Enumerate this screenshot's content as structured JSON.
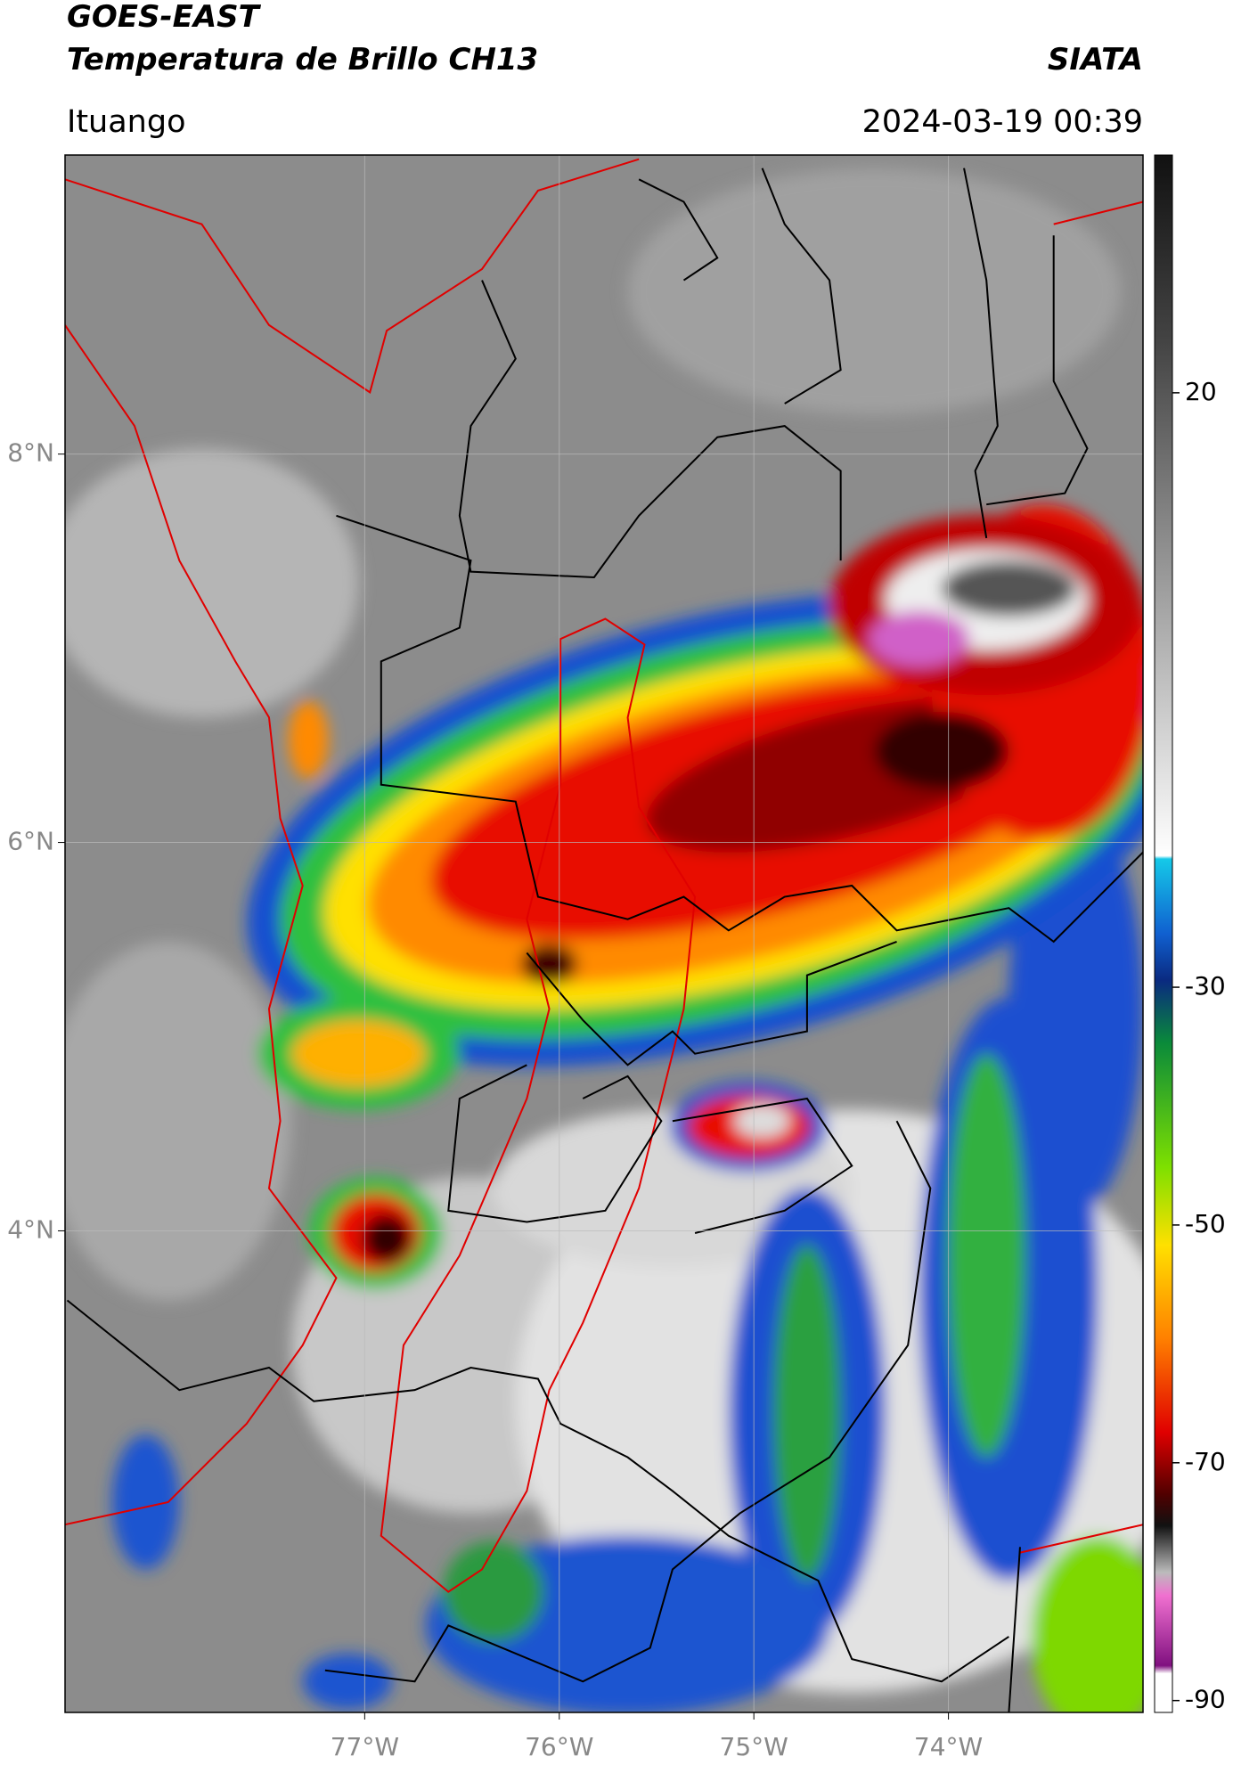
{
  "header": {
    "title": "GOES-EAST",
    "subtitle": "Temperatura de Brillo CH13",
    "brand": "SIATA",
    "location": "Ituango",
    "datetime": "2024-03-19 00:39"
  },
  "map": {
    "xlim": [
      -78.54,
      -73.0
    ],
    "ylim": [
      1.52,
      9.54
    ],
    "xticks": [
      {
        "value": -77,
        "label": "77°W"
      },
      {
        "value": -76,
        "label": "76°W"
      },
      {
        "value": -75,
        "label": "75°W"
      },
      {
        "value": -74,
        "label": "74°W"
      }
    ],
    "yticks": [
      {
        "value": 8,
        "label": "8°N"
      },
      {
        "value": 6,
        "label": "6°N"
      },
      {
        "value": 4,
        "label": "4°N"
      }
    ],
    "grid": true
  },
  "colorbar": {
    "lim": [
      -91,
      40
    ],
    "ticks": [
      20,
      -30,
      -50,
      -70,
      -90
    ]
  }
}
